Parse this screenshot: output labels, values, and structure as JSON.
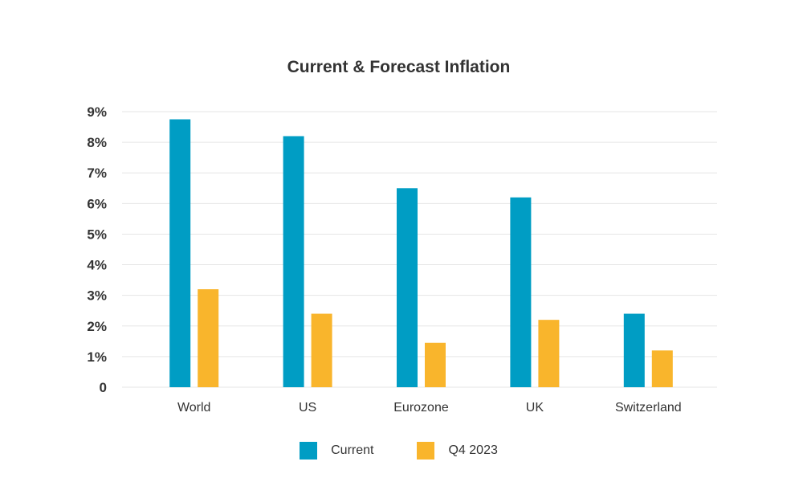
{
  "colors": {
    "current": "#009DC4",
    "q4_2023": "#F9B52C",
    "grid": "#E5E5E5",
    "text": "#333333"
  },
  "chart_data": {
    "type": "bar",
    "title": "Current & Forecast Inflation",
    "categories": [
      "World",
      "US",
      "Eurozone",
      "UK",
      "Switzerland"
    ],
    "series": [
      {
        "name": "Current",
        "values": [
          8.75,
          8.2,
          6.5,
          6.2,
          2.4
        ]
      },
      {
        "name": "Q4 2023",
        "values": [
          3.2,
          2.4,
          1.45,
          2.2,
          1.2
        ]
      }
    ],
    "ylim": [
      0,
      9
    ],
    "yticks": [
      0,
      1,
      2,
      3,
      4,
      5,
      6,
      7,
      8,
      9
    ],
    "ytick_labels": [
      "0",
      "1%",
      "2%",
      "3%",
      "4%",
      "5%",
      "6%",
      "7%",
      "8%",
      "9%"
    ],
    "xlabel": "",
    "ylabel": "",
    "grid": true,
    "legend_position": "bottom-center"
  }
}
